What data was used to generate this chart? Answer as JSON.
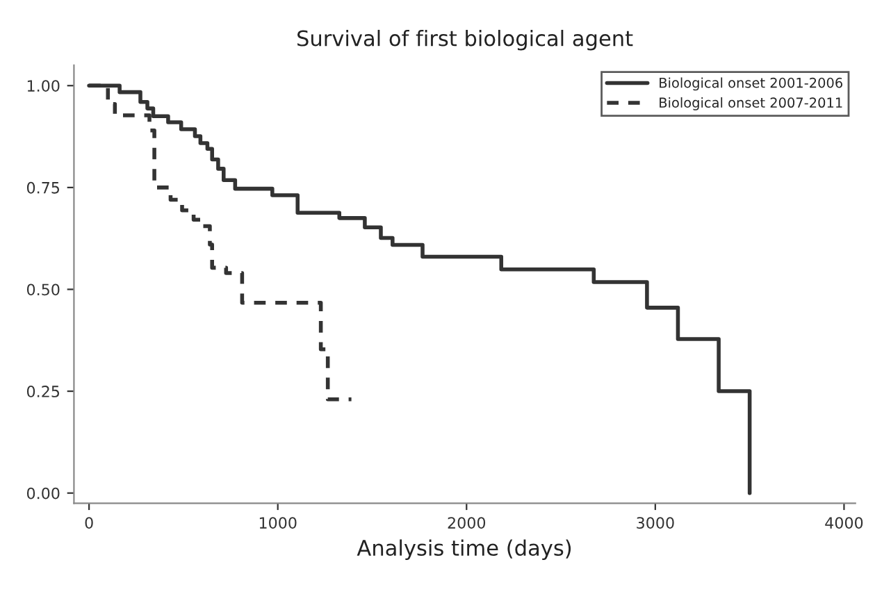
{
  "chart_data": {
    "type": "step",
    "title": "Survival of first biological agent",
    "xlabel": "Analysis time (days)",
    "xlim": [
      -80,
      4060
    ],
    "ylim": [
      -0.025,
      1.05
    ],
    "xticks": [
      0,
      1000,
      2000,
      3000,
      4000
    ],
    "yticks": [
      {
        "value": 0,
        "label": "0.00"
      },
      {
        "value": 0.25,
        "label": "0.25"
      },
      {
        "value": 0.5,
        "label": "0.50"
      },
      {
        "value": 0.75,
        "label": "0.75"
      },
      {
        "value": 1,
        "label": "1.00"
      }
    ],
    "grid": false,
    "legend": "top right",
    "series": [
      {
        "name": "Biological onset 2001-2006",
        "color": "#333333",
        "line_style": "solid",
        "x": [
          0,
          162,
          272,
          309,
          340,
          419,
          488,
          561,
          590,
          627,
          652,
          684,
          713,
          774,
          971,
          1105,
          1326,
          1461,
          1546,
          1608,
          1767,
          2184,
          2674,
          2956,
          3120,
          3336,
          3500
        ],
        "values": [
          1.0,
          0.984,
          0.96,
          0.944,
          0.925,
          0.91,
          0.893,
          0.876,
          0.859,
          0.845,
          0.819,
          0.796,
          0.768,
          0.747,
          0.731,
          0.688,
          0.675,
          0.652,
          0.626,
          0.609,
          0.58,
          0.549,
          0.518,
          0.455,
          0.378,
          0.25,
          0.0
        ]
      },
      {
        "name": "Biological onset 2007-2011",
        "color": "#333333",
        "line_style": "dashed",
        "x": [
          0,
          100,
          137,
          320,
          346,
          432,
          493,
          554,
          603,
          640,
          652,
          726,
          811,
          1228,
          1265,
          1390
        ],
        "values": [
          1.0,
          0.955,
          0.927,
          0.89,
          0.75,
          0.72,
          0.694,
          0.671,
          0.655,
          0.61,
          0.553,
          0.54,
          0.467,
          0.353,
          0.23,
          0.23
        ]
      }
    ]
  }
}
